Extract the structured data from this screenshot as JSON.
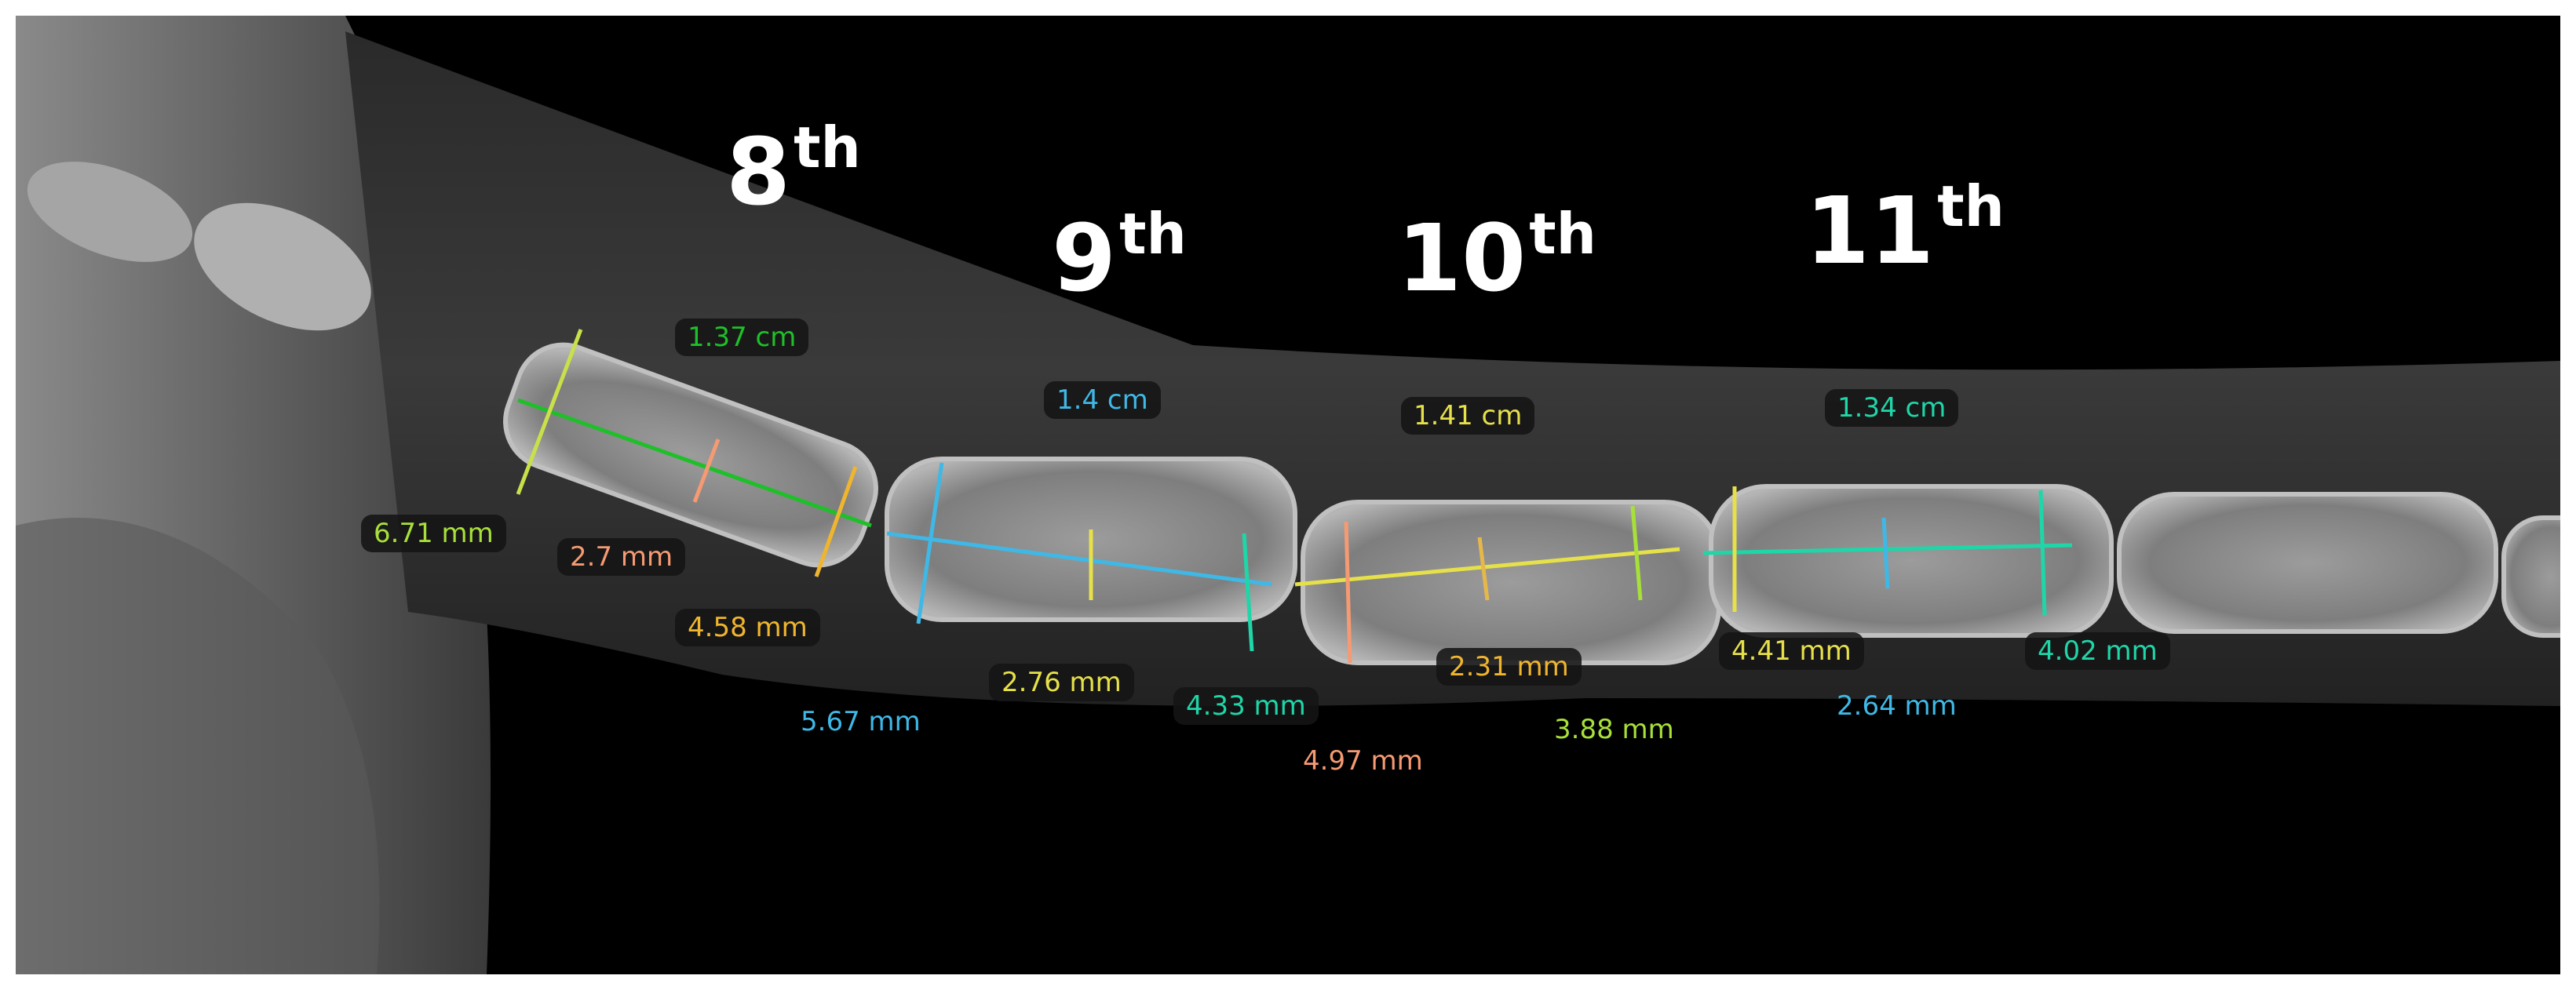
{
  "ordinals": [
    {
      "num": "8",
      "suffix": "th"
    },
    {
      "num": "9",
      "suffix": "th"
    },
    {
      "num": "10",
      "suffix": "th"
    },
    {
      "num": "11",
      "suffix": "th"
    }
  ],
  "measurements": {
    "length_8": "1.37 cm",
    "length_9": "1.4 cm",
    "length_10": "1.41 cm",
    "length_11": "1.34 cm",
    "prox_8": "6.71 mm",
    "mid_8": "2.7 mm",
    "dist_8": "4.58 mm",
    "prox_9": "5.67 mm",
    "mid_9": "2.76 mm",
    "dist_9": "4.33 mm",
    "prox_10": "4.97 mm",
    "mid_10": "2.31 mm",
    "dist_10": "3.88 mm",
    "prox_11": "4.41 mm",
    "mid_11": "2.64 mm",
    "dist_11": "4.02 mm"
  },
  "colors": {
    "green": "#1fbf2a",
    "blue": "#3fb8e6",
    "yellow": "#e6e04a",
    "teal": "#1fd6a8",
    "lime": "#a8e03a",
    "salmon": "#f59a72",
    "orange": "#f0b52e"
  }
}
